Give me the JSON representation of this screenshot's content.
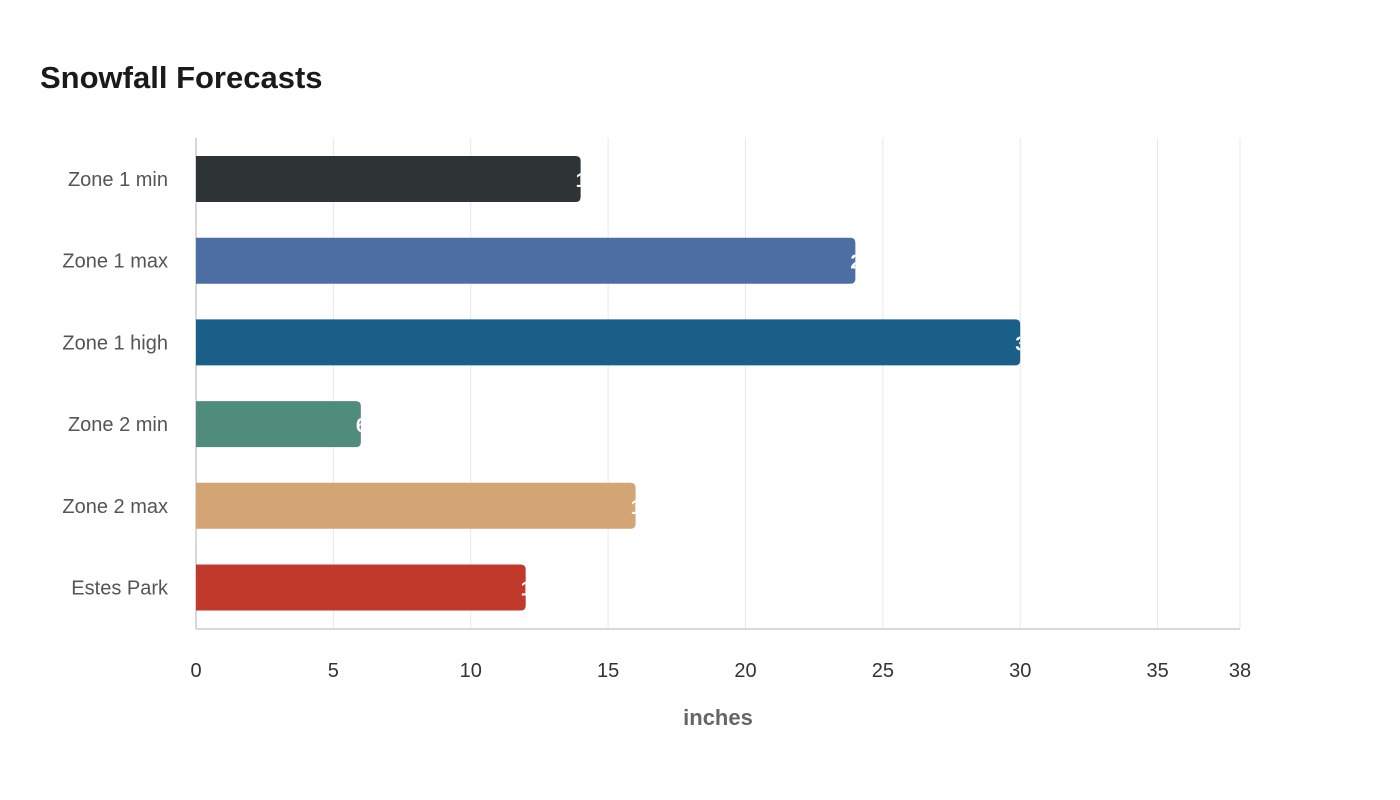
{
  "chart_data": {
    "type": "bar",
    "orientation": "horizontal",
    "title": "Snowfall Forecasts",
    "xlabel": "inches",
    "ylabel": "",
    "categories": [
      "Zone 1 min",
      "Zone 1 max",
      "Zone 1 high",
      "Zone 2 min",
      "Zone 2 max",
      "Estes Park"
    ],
    "values": [
      14,
      24,
      30,
      6,
      16,
      12
    ],
    "colors": [
      "#2e3436",
      "#4c6ea3",
      "#1a5f88",
      "#4f8c7b",
      "#d3a574",
      "#c0392b"
    ],
    "xlim": [
      0,
      38
    ],
    "xticks": [
      0,
      5,
      10,
      15,
      20,
      25,
      30,
      35,
      38
    ],
    "grid": true,
    "legend": "none"
  }
}
